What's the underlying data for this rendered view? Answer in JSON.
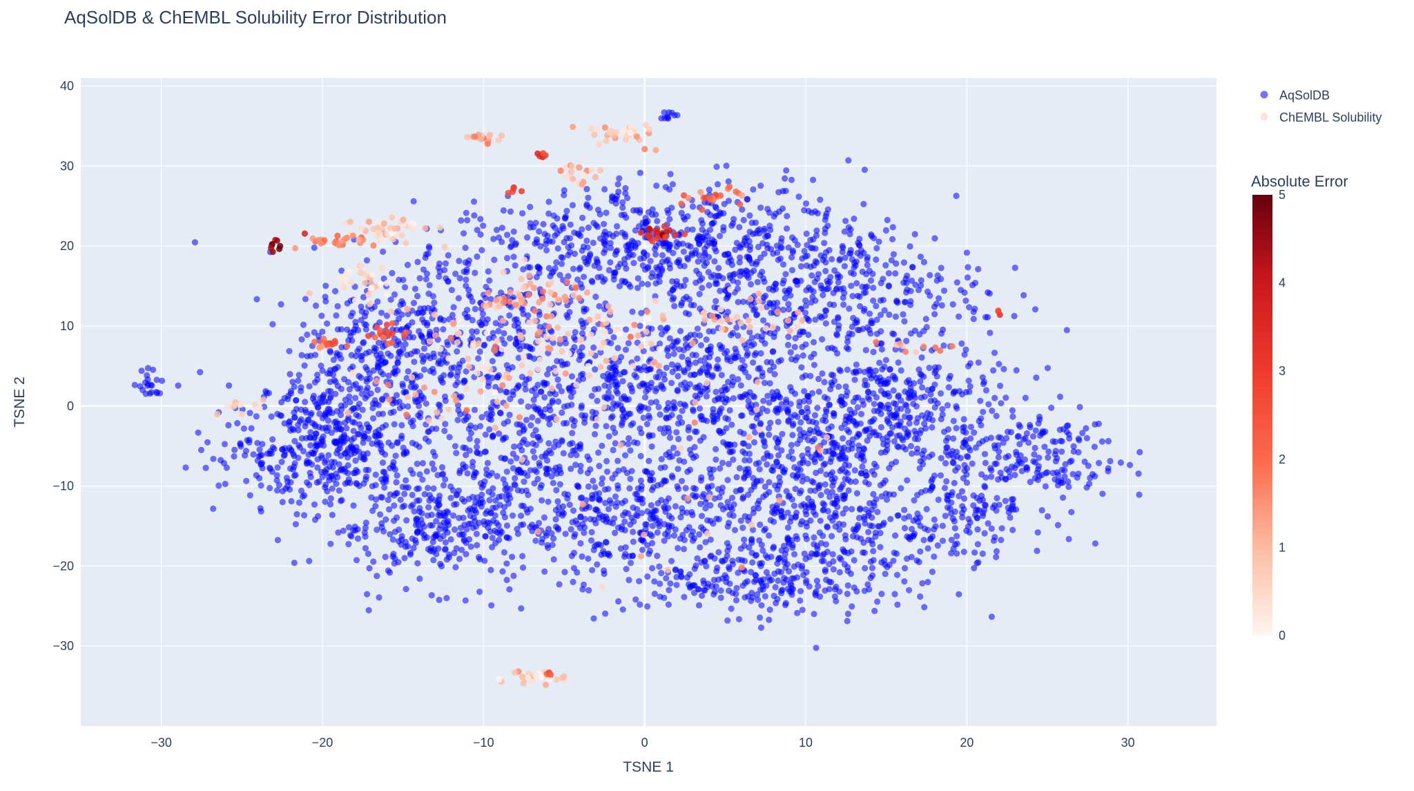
{
  "chart_data": {
    "type": "scatter",
    "title": "AqSolDB & ChEMBL Solubility Error Distribution",
    "xlabel": "TSNE 1",
    "ylabel": "TSNE 2",
    "xlim": [
      -35,
      35.5
    ],
    "ylim": [
      -40,
      41
    ],
    "x_ticks": [
      -30,
      -20,
      -10,
      0,
      10,
      20,
      30
    ],
    "y_ticks": [
      -30,
      -20,
      -10,
      0,
      10,
      20,
      30,
      40
    ],
    "x_tick_labels": [
      "−30",
      "−20",
      "−10",
      "0",
      "10",
      "20",
      "30"
    ],
    "y_tick_labels": [
      "−30",
      "−20",
      "−10",
      "0",
      "10",
      "20",
      "30",
      "40"
    ],
    "grid": true,
    "legend_position": "top-right",
    "colorbar": {
      "title": "Absolute Error",
      "range": [
        0,
        5
      ],
      "ticks": [
        0,
        1,
        2,
        3,
        4,
        5
      ],
      "tick_labels": [
        "0",
        "1",
        "2",
        "3",
        "4",
        "5"
      ],
      "colors": [
        "#fff5f0",
        "#fcbba1",
        "#fb6a4a",
        "#ef3b2c",
        "#cb181d",
        "#67000d"
      ]
    },
    "series": [
      {
        "name": "AqSolDB",
        "color": "#0000ff",
        "opacity": 0.55,
        "clusters": [
          {
            "cx": -19,
            "cy": -4,
            "sx": 2.5,
            "sy": 4,
            "n": 350
          },
          {
            "cx": -13,
            "cy": -15,
            "sx": 3.5,
            "sy": 3.5,
            "n": 300
          },
          {
            "cx": -8,
            "cy": -5,
            "sx": 4.5,
            "sy": 6,
            "n": 350
          },
          {
            "cx": 0,
            "cy": -14,
            "sx": 4,
            "sy": 4.5,
            "n": 380
          },
          {
            "cx": 12,
            "cy": -17,
            "sx": 4,
            "sy": 4.5,
            "n": 320
          },
          {
            "cx": 10,
            "cy": -6,
            "sx": 3.5,
            "sy": 4.5,
            "n": 320
          },
          {
            "cx": 16,
            "cy": 0,
            "sx": 3,
            "sy": 4,
            "n": 300
          },
          {
            "cx": 5,
            "cy": 5,
            "sx": 4,
            "sy": 6,
            "n": 380
          },
          {
            "cx": 5,
            "cy": 20,
            "sx": 4.5,
            "sy": 4,
            "n": 380
          },
          {
            "cx": -4,
            "cy": 20,
            "sx": 4,
            "sy": 3.5,
            "n": 250
          },
          {
            "cx": -11,
            "cy": 11,
            "sx": 5,
            "sy": 4.5,
            "n": 330
          },
          {
            "cx": 13,
            "cy": 14,
            "sx": 4,
            "sy": 4.5,
            "n": 280
          },
          {
            "cx": 24,
            "cy": -6,
            "sx": 2.8,
            "sy": 3,
            "n": 170
          },
          {
            "cx": -23,
            "cy": -6,
            "sx": 2.5,
            "sy": 3.5,
            "n": 90
          },
          {
            "cx": -30.5,
            "cy": 2.8,
            "sx": 0.6,
            "sy": 0.9,
            "n": 22
          },
          {
            "cx": 1.6,
            "cy": 36.4,
            "sx": 0.35,
            "sy": 0.25,
            "n": 10
          },
          {
            "cx": -2,
            "cy": 2,
            "sx": 4,
            "sy": 4,
            "n": 250
          },
          {
            "cx": -16,
            "cy": 5,
            "sx": 3,
            "sy": 4,
            "n": 200
          },
          {
            "cx": 20,
            "cy": -12,
            "sx": 2.5,
            "sy": 3,
            "n": 130
          },
          {
            "cx": 6,
            "cy": -22,
            "sx": 3.5,
            "sy": 2,
            "n": 140
          }
        ]
      },
      {
        "name": "ChEMBL Solubility",
        "color": "#fee2d6",
        "opacity": 0.85,
        "clusters": [
          {
            "cx": -16,
            "cy": 22,
            "sx": 1.4,
            "sy": 0.7,
            "n": 40,
            "err": 0.6
          },
          {
            "cx": -19,
            "cy": 20.8,
            "sx": 1.2,
            "sy": 0.4,
            "n": 25,
            "err": 1.8
          },
          {
            "cx": -22.9,
            "cy": 19.8,
            "sx": 0.2,
            "sy": 0.4,
            "n": 8,
            "err": 4.8
          },
          {
            "cx": -17.5,
            "cy": 15.5,
            "sx": 1.2,
            "sy": 1.5,
            "n": 30,
            "err": 0.5
          },
          {
            "cx": -19.5,
            "cy": 7.6,
            "sx": 0.4,
            "sy": 0.4,
            "n": 18,
            "err": 2.0
          },
          {
            "cx": -16.2,
            "cy": 9,
            "sx": 0.5,
            "sy": 0.6,
            "n": 18,
            "err": 2.6
          },
          {
            "cx": -10,
            "cy": 33.5,
            "sx": 0.6,
            "sy": 0.3,
            "n": 15,
            "err": 1.2
          },
          {
            "cx": -1.5,
            "cy": 33.8,
            "sx": 1.4,
            "sy": 0.8,
            "n": 30,
            "err": 0.7
          },
          {
            "cx": -4,
            "cy": 29,
            "sx": 0.7,
            "sy": 0.7,
            "n": 18,
            "err": 0.8
          },
          {
            "cx": -6.5,
            "cy": 31.6,
            "sx": 0.3,
            "sy": 0.2,
            "n": 6,
            "err": 3.2
          },
          {
            "cx": -8.2,
            "cy": 27,
            "sx": 0.3,
            "sy": 0.2,
            "n": 5,
            "err": 2.8
          },
          {
            "cx": 1,
            "cy": 21.5,
            "sx": 0.6,
            "sy": 0.4,
            "n": 22,
            "err": 3.6
          },
          {
            "cx": -7,
            "cy": 35.5,
            "sx": 0.01,
            "sy": 0.01,
            "n": 0,
            "err": 0
          },
          {
            "cx": -7,
            "cy": -34,
            "sx": 0.9,
            "sy": 0.4,
            "n": 28,
            "err": 0.6
          },
          {
            "cx": -6.1,
            "cy": -33.3,
            "sx": 0.2,
            "sy": 0.2,
            "n": 4,
            "err": 2.8
          },
          {
            "cx": -7,
            "cy": 14,
            "sx": 1.5,
            "sy": 1.2,
            "n": 40,
            "err": 1.3
          },
          {
            "cx": -4,
            "cy": 9,
            "sx": 3,
            "sy": 3,
            "n": 70,
            "err": 1.0
          },
          {
            "cx": -10,
            "cy": 7,
            "sx": 2,
            "sy": 3,
            "n": 40,
            "err": 0.9
          },
          {
            "cx": 7,
            "cy": 11,
            "sx": 2,
            "sy": 1.5,
            "n": 30,
            "err": 1.0
          },
          {
            "cx": 22,
            "cy": 12,
            "sx": 0.15,
            "sy": 0.4,
            "n": 3,
            "err": 2.5
          },
          {
            "cx": -25,
            "cy": 0,
            "sx": 0.7,
            "sy": 0.6,
            "n": 10,
            "err": 0.6
          },
          {
            "cx": 16,
            "cy": 7.5,
            "sx": 1.5,
            "sy": 0.5,
            "n": 10,
            "err": 1.2
          },
          {
            "cx": 4,
            "cy": 26,
            "sx": 1.5,
            "sy": 0.6,
            "n": 20,
            "err": 2.3
          },
          {
            "cx": -14,
            "cy": 1,
            "sx": 2.5,
            "sy": 2,
            "n": 20,
            "err": 1.4
          },
          {
            "cx": 0,
            "cy": -6,
            "sx": 6,
            "sy": 8,
            "n": 35,
            "err": 1.0
          }
        ]
      }
    ]
  }
}
